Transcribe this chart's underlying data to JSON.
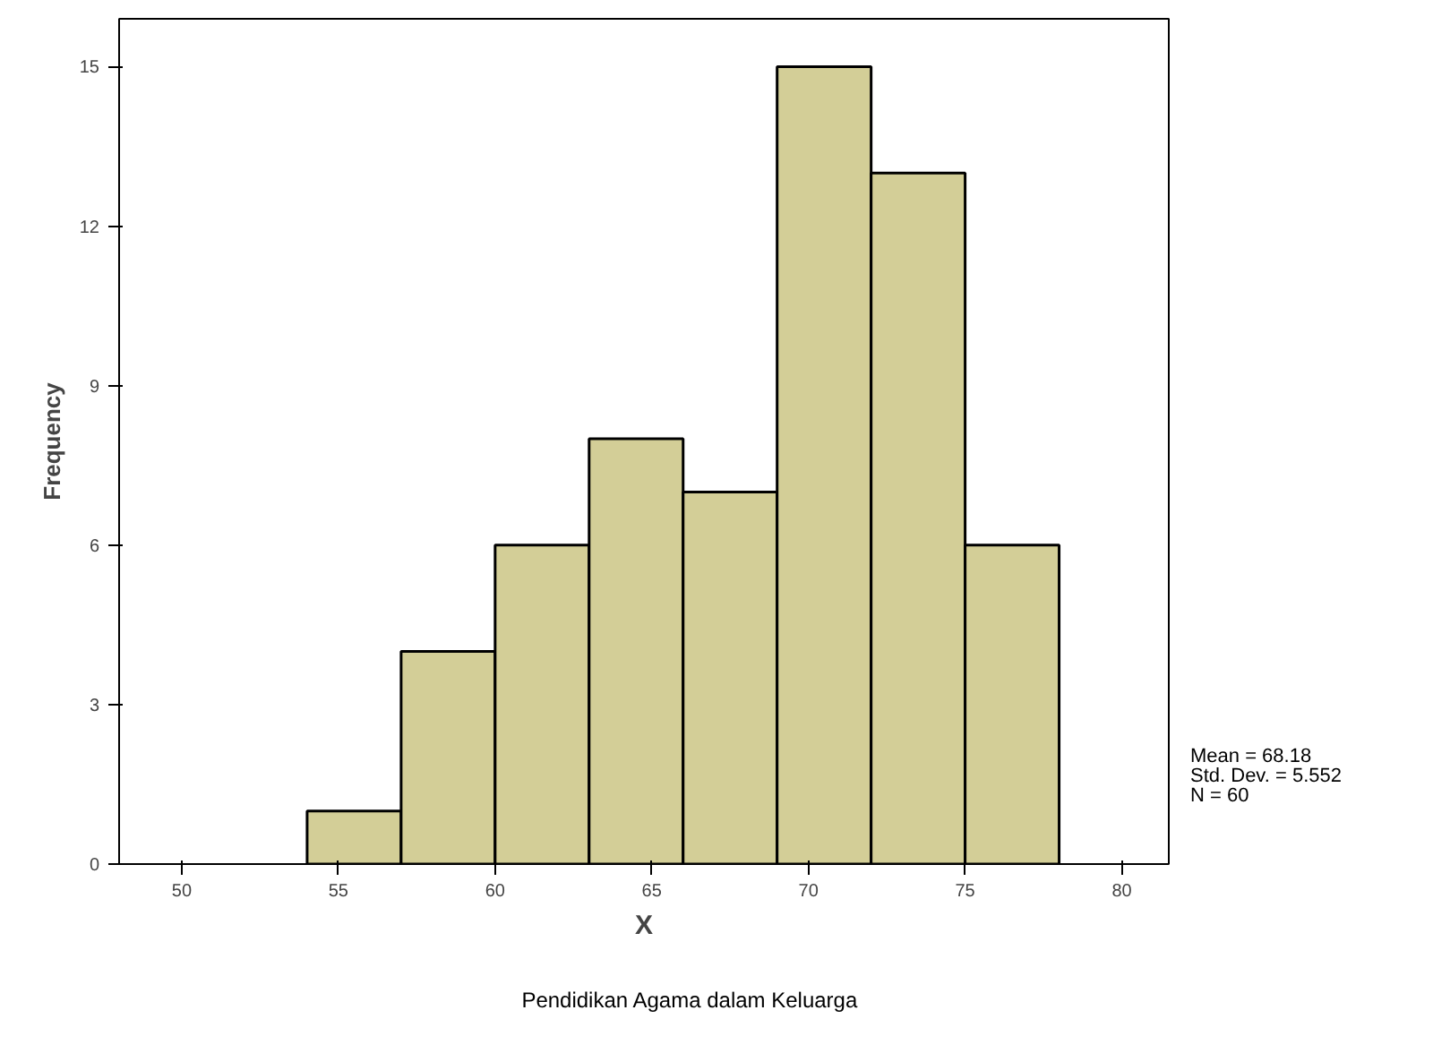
{
  "chart_data": {
    "type": "histogram",
    "xlabel": "X",
    "ylabel": "Frequency",
    "bins": [
      54,
      57,
      60,
      63,
      66,
      69,
      72,
      75,
      78
    ],
    "values": [
      1,
      4,
      6,
      8,
      7,
      15,
      13,
      6
    ],
    "color": "#d3ce97",
    "xlim": [
      48,
      81.5
    ],
    "xticks": [
      50,
      55,
      60,
      65,
      70,
      75,
      80
    ],
    "ylim": [
      0,
      15.9
    ],
    "yticks": [
      0,
      3,
      6,
      9,
      12,
      15
    ],
    "grid": false,
    "annotations": [
      "Pendidikan Agama dalam Keluarga",
      "Mean = 68.18",
      "Std. Dev. = 5.552",
      "N = 60"
    ]
  }
}
